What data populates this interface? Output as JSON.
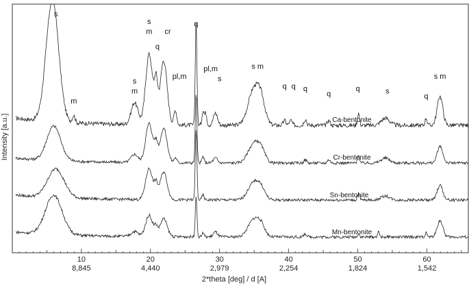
{
  "chart_data": {
    "type": "line",
    "xlabel": "2*theta [deg] / d [A]",
    "ylabel": "Intensity  [a.u.]",
    "xlim": [
      0,
      66
    ],
    "x_ticks": [
      {
        "two_theta": 10,
        "d": "8,845"
      },
      {
        "two_theta": 20,
        "d": "4,440"
      },
      {
        "two_theta": 30,
        "d": "2,979"
      },
      {
        "two_theta": 40,
        "d": "2,254"
      },
      {
        "two_theta": 50,
        "d": "1,824"
      },
      {
        "two_theta": 60,
        "d": "1,542"
      }
    ],
    "series": [
      {
        "name": "Ca-bentonite",
        "peaks": [
          {
            "two_theta": 5.8,
            "height": 1.0,
            "width": 0.9
          },
          {
            "two_theta": 8.9,
            "height": 0.06,
            "width": 0.2
          },
          {
            "two_theta": 17.7,
            "height": 0.18,
            "width": 0.5
          },
          {
            "two_theta": 19.8,
            "height": 0.58,
            "width": 0.5
          },
          {
            "two_theta": 20.8,
            "height": 0.3,
            "width": 0.25
          },
          {
            "two_theta": 21.9,
            "height": 0.53,
            "width": 0.5
          },
          {
            "two_theta": 23.6,
            "height": 0.12,
            "width": 0.2
          },
          {
            "two_theta": 26.6,
            "height": 0.85,
            "width": 0.12
          },
          {
            "two_theta": 27.6,
            "height": 0.12,
            "width": 0.15
          },
          {
            "two_theta": 28.0,
            "height": 0.1,
            "width": 0.15
          },
          {
            "two_theta": 29.4,
            "height": 0.1,
            "width": 0.3
          },
          {
            "two_theta": 34.9,
            "height": 0.28,
            "width": 0.8
          },
          {
            "two_theta": 36.0,
            "height": 0.18,
            "width": 0.6
          },
          {
            "two_theta": 39.4,
            "height": 0.04,
            "width": 0.2
          },
          {
            "two_theta": 40.3,
            "height": 0.04,
            "width": 0.2
          },
          {
            "two_theta": 42.4,
            "height": 0.05,
            "width": 0.2
          },
          {
            "two_theta": 45.8,
            "height": 0.04,
            "width": 0.2
          },
          {
            "two_theta": 50.1,
            "height": 0.1,
            "width": 0.15
          },
          {
            "two_theta": 54.0,
            "height": 0.06,
            "width": 0.6
          },
          {
            "two_theta": 59.9,
            "height": 0.06,
            "width": 0.15
          },
          {
            "two_theta": 61.9,
            "height": 0.24,
            "width": 0.4
          }
        ]
      },
      {
        "name": "Cr-bentonite",
        "peaks": [
          {
            "two_theta": 6.0,
            "height": 0.42,
            "width": 1.0
          },
          {
            "two_theta": 17.7,
            "height": 0.1,
            "width": 0.5
          },
          {
            "two_theta": 19.8,
            "height": 0.48,
            "width": 0.5
          },
          {
            "two_theta": 20.8,
            "height": 0.2,
            "width": 0.25
          },
          {
            "two_theta": 21.9,
            "height": 0.42,
            "width": 0.5
          },
          {
            "two_theta": 23.6,
            "height": 0.06,
            "width": 0.2
          },
          {
            "two_theta": 26.6,
            "height": 0.85,
            "width": 0.12
          },
          {
            "two_theta": 27.6,
            "height": 0.08,
            "width": 0.15
          },
          {
            "two_theta": 29.4,
            "height": 0.06,
            "width": 0.3
          },
          {
            "two_theta": 34.9,
            "height": 0.22,
            "width": 0.8
          },
          {
            "two_theta": 36.0,
            "height": 0.14,
            "width": 0.6
          },
          {
            "two_theta": 42.4,
            "height": 0.04,
            "width": 0.2
          },
          {
            "two_theta": 45.8,
            "height": 0.04,
            "width": 0.2
          },
          {
            "two_theta": 50.1,
            "height": 0.1,
            "width": 0.15
          },
          {
            "two_theta": 54.0,
            "height": 0.06,
            "width": 0.6
          },
          {
            "two_theta": 61.9,
            "height": 0.2,
            "width": 0.4
          }
        ]
      },
      {
        "name": "Sn-bentonite",
        "peaks": [
          {
            "two_theta": 6.3,
            "height": 0.35,
            "width": 1.2
          },
          {
            "two_theta": 19.8,
            "height": 0.38,
            "width": 0.5
          },
          {
            "two_theta": 20.8,
            "height": 0.16,
            "width": 0.25
          },
          {
            "two_theta": 21.9,
            "height": 0.34,
            "width": 0.5
          },
          {
            "two_theta": 26.6,
            "height": 0.85,
            "width": 0.12
          },
          {
            "two_theta": 27.6,
            "height": 0.06,
            "width": 0.15
          },
          {
            "two_theta": 34.9,
            "height": 0.2,
            "width": 0.8
          },
          {
            "two_theta": 36.0,
            "height": 0.12,
            "width": 0.6
          },
          {
            "two_theta": 50.1,
            "height": 0.08,
            "width": 0.15
          },
          {
            "two_theta": 54.0,
            "height": 0.05,
            "width": 0.6
          },
          {
            "two_theta": 61.9,
            "height": 0.18,
            "width": 0.4
          }
        ]
      },
      {
        "name": "Mn-bentonite",
        "peaks": [
          {
            "two_theta": 6.0,
            "height": 0.48,
            "width": 1.2
          },
          {
            "two_theta": 17.7,
            "height": 0.06,
            "width": 0.5
          },
          {
            "two_theta": 19.8,
            "height": 0.26,
            "width": 0.5
          },
          {
            "two_theta": 20.8,
            "height": 0.1,
            "width": 0.25
          },
          {
            "two_theta": 21.9,
            "height": 0.22,
            "width": 0.5
          },
          {
            "two_theta": 26.6,
            "height": 0.5,
            "width": 0.12
          },
          {
            "two_theta": 27.6,
            "height": 0.05,
            "width": 0.15
          },
          {
            "two_theta": 29.4,
            "height": 0.06,
            "width": 0.3
          },
          {
            "two_theta": 34.9,
            "height": 0.2,
            "width": 0.8
          },
          {
            "two_theta": 36.0,
            "height": 0.12,
            "width": 0.6
          },
          {
            "two_theta": 42.4,
            "height": 0.04,
            "width": 0.2
          },
          {
            "two_theta": 50.1,
            "height": 0.04,
            "width": 0.15
          },
          {
            "two_theta": 53.0,
            "height": 0.06,
            "width": 0.15
          },
          {
            "two_theta": 59.9,
            "height": 0.05,
            "width": 0.15
          },
          {
            "two_theta": 61.9,
            "height": 0.2,
            "width": 0.4
          }
        ]
      }
    ],
    "peak_annotations": [
      {
        "text": "s",
        "two_theta": 6.3,
        "y": 0.95
      },
      {
        "text": "m",
        "two_theta": 8.9,
        "y": 0.6
      },
      {
        "text": "s",
        "two_theta": 17.7,
        "y": 0.68
      },
      {
        "text": "m",
        "two_theta": 17.7,
        "y": 0.64
      },
      {
        "text": "s",
        "two_theta": 19.8,
        "y": 0.92
      },
      {
        "text": "m",
        "two_theta": 19.8,
        "y": 0.88
      },
      {
        "text": "q",
        "two_theta": 21.0,
        "y": 0.82
      },
      {
        "text": "cr",
        "two_theta": 22.5,
        "y": 0.88
      },
      {
        "text": "pl,m",
        "two_theta": 24.2,
        "y": 0.7
      },
      {
        "text": "q",
        "two_theta": 26.6,
        "y": 0.91
      },
      {
        "text": "pl,m",
        "two_theta": 28.7,
        "y": 0.73
      },
      {
        "text": "s",
        "two_theta": 30.0,
        "y": 0.69
      },
      {
        "text": "s m",
        "two_theta": 35.5,
        "y": 0.74
      },
      {
        "text": "q",
        "two_theta": 39.4,
        "y": 0.66
      },
      {
        "text": "q",
        "two_theta": 40.7,
        "y": 0.66
      },
      {
        "text": "q",
        "two_theta": 42.4,
        "y": 0.65
      },
      {
        "text": "q",
        "two_theta": 45.8,
        "y": 0.63
      },
      {
        "text": "q",
        "two_theta": 50.0,
        "y": 0.65
      },
      {
        "text": "s",
        "two_theta": 54.3,
        "y": 0.64
      },
      {
        "text": "q",
        "two_theta": 59.9,
        "y": 0.62
      },
      {
        "text": "s m",
        "two_theta": 61.9,
        "y": 0.7
      }
    ]
  }
}
